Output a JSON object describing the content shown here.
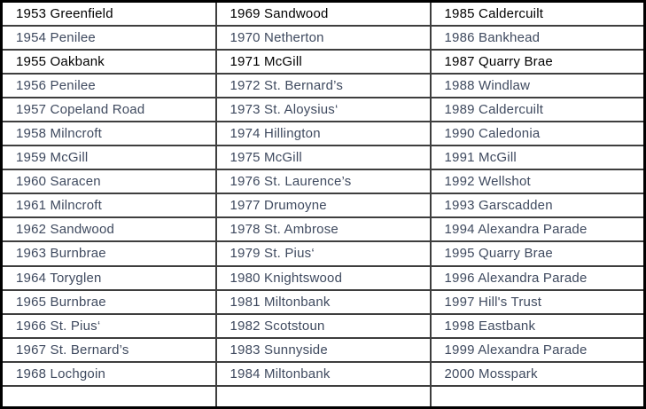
{
  "table": {
    "description_colors": {
      "default_text": "#3f4a5f",
      "emphasis_text": "#000000",
      "grid_border": "#3e3e3e",
      "outer_border": "#000000"
    },
    "emphasis_row_indices": [
      0,
      2
    ],
    "columns": [
      {
        "id": "years-1953-1968",
        "cells": [
          "1953 Greenfield",
          "1954 Penilee",
          "1955 Oakbank",
          "1956 Penilee",
          "1957 Copeland Road",
          "1958 Milncroft",
          "1959 McGill",
          "1960 Saracen",
          "1961 Milncroft",
          "1962 Sandwood",
          "1963 Burnbrae",
          "1964 Toryglen",
          "1965 Burnbrae",
          "1966 St. Pius‘",
          "1967 St. Bernard’s",
          "1968 Lochgoin",
          ""
        ]
      },
      {
        "id": "years-1969-1984",
        "cells": [
          "1969 Sandwood",
          "1970 Netherton",
          "1971 McGill",
          "1972 St. Bernard’s",
          "1973 St. Aloysius‘",
          "1974 Hillington",
          "1975 McGill",
          "1976 St. Laurence’s",
          "1977 Drumoyne",
          "1978 St. Ambrose",
          "1979 St. Pius‘",
          "1980 Knightswood",
          "1981 Miltonbank",
          "1982 Scotstoun",
          "1983 Sunnyside",
          "1984 Miltonbank",
          ""
        ]
      },
      {
        "id": "years-1985-2000",
        "cells": [
          "1985 Caldercuilt",
          "1986 Bankhead",
          "1987 Quarry Brae",
          "1988 Windlaw",
          "1989 Caldercuilt",
          "1990 Caledonia",
          "1991 McGill",
          "1992 Wellshot",
          "1993 Garscadden",
          "1994 Alexandra Parade",
          "1995 Quarry Brae",
          "1996 Alexandra Parade",
          "1997 Hill's Trust",
          "1998 Eastbank",
          "1999 Alexandra Parade",
          "2000 Mosspark",
          ""
        ]
      }
    ]
  }
}
